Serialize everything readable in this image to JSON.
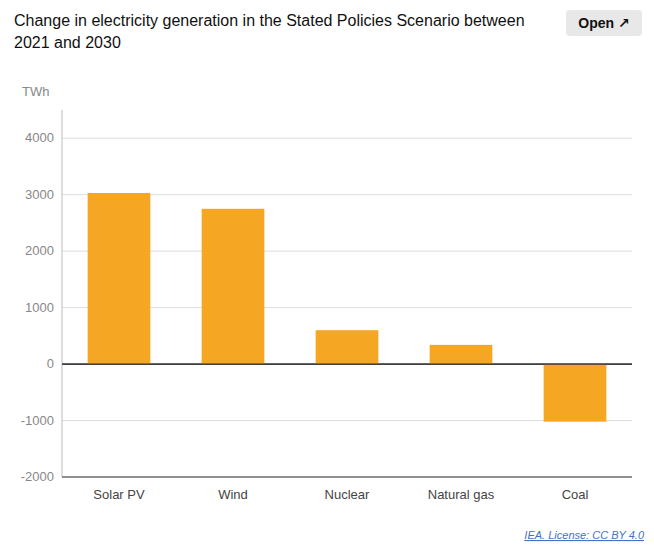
{
  "chart_data": {
    "type": "bar",
    "title": "Change in electricity generation in the Stated Policies Scenario between 2021 and 2030",
    "y_label": "TWh",
    "annotations": [
      "Open ↗",
      "IEA. License: CC BY 4.0"
    ],
    "categories": [
      "Solar PV",
      "Wind",
      "Nuclear",
      "Natural gas",
      "Coal"
    ],
    "values": [
      3030,
      2750,
      600,
      340,
      -1020
    ],
    "color": "#F5A623",
    "ylim": [
      -2000,
      4500
    ],
    "yticks": [
      -2000,
      -1000,
      0,
      1000,
      2000,
      3000,
      4000
    ],
    "grid": true
  }
}
